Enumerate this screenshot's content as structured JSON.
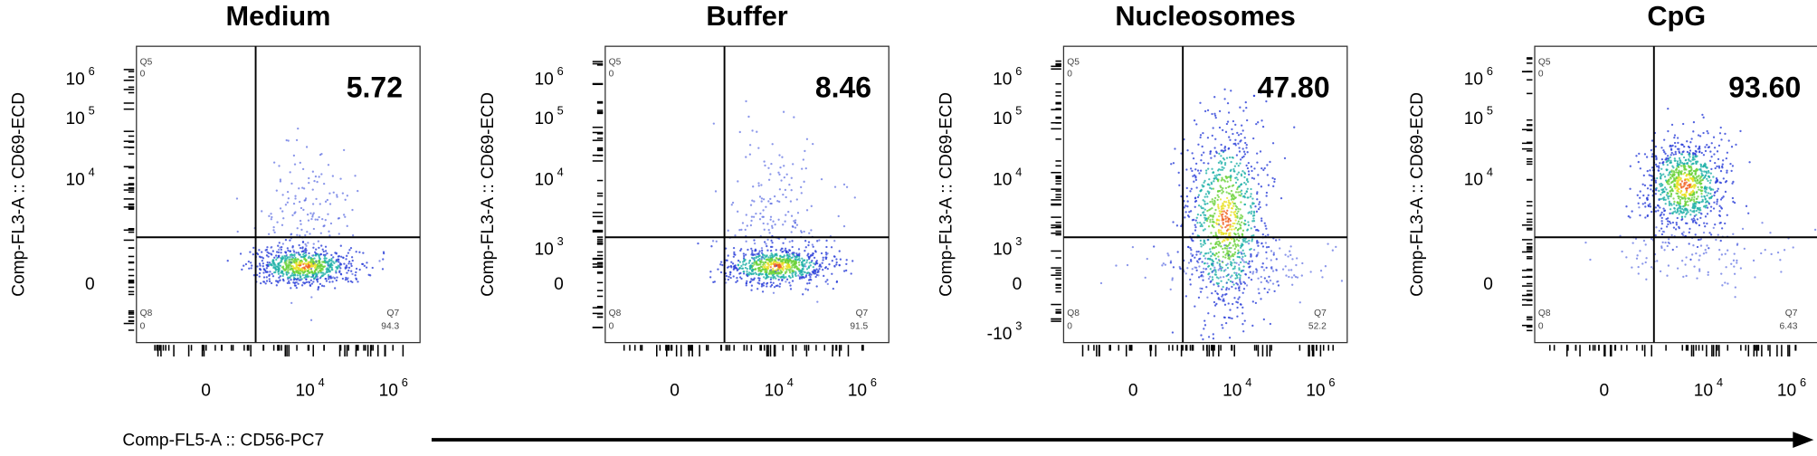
{
  "figure": {
    "x_label": "Comp-FL5-A :: CD56-PC7",
    "panels": [
      {
        "title": "Medium",
        "value": "5.72",
        "y_label": "Comp-FL3-A :: CD69-ECD",
        "q5": [
          "Q5",
          "0"
        ],
        "q8": [
          "Q8",
          "0"
        ],
        "q7": [
          "Q7",
          "94.3"
        ],
        "yticks": [
          {
            "base": "10",
            "exp": "6"
          },
          {
            "base": "10",
            "exp": "5"
          },
          {
            "base": "10",
            "exp": "4"
          },
          {
            "base": "0"
          }
        ],
        "xticks": [
          {
            "base": "0"
          },
          {
            "base": "10",
            "exp": "4"
          },
          {
            "base": "10",
            "exp": "6"
          }
        ]
      },
      {
        "title": "Buffer",
        "value": "8.46",
        "y_label": "Comp-FL3-A :: CD69-ECD",
        "q5": [
          "Q5",
          "0"
        ],
        "q8": [
          "Q8",
          "0"
        ],
        "q7": [
          "Q7",
          "91.5"
        ],
        "yticks": [
          {
            "base": "10",
            "exp": "6"
          },
          {
            "base": "10",
            "exp": "5"
          },
          {
            "base": "10",
            "exp": "4"
          },
          {
            "base": "10",
            "exp": "3"
          },
          {
            "base": "0"
          }
        ],
        "xticks": [
          {
            "base": "0"
          },
          {
            "base": "10",
            "exp": "4"
          },
          {
            "base": "10",
            "exp": "6"
          }
        ]
      },
      {
        "title": "Nucleosomes",
        "value": "47.80",
        "y_label": "Comp-FL3-A :: CD69-ECD",
        "q5": [
          "Q5",
          "0"
        ],
        "q8": [
          "Q8",
          "0"
        ],
        "q7": [
          "Q7",
          "52.2"
        ],
        "yticks": [
          {
            "base": "10",
            "exp": "6"
          },
          {
            "base": "10",
            "exp": "5"
          },
          {
            "base": "10",
            "exp": "4"
          },
          {
            "base": "10",
            "exp": "3"
          },
          {
            "base": "0"
          },
          {
            "base": "-10",
            "exp": "3"
          }
        ],
        "xticks": [
          {
            "base": "0"
          },
          {
            "base": "10",
            "exp": "4"
          },
          {
            "base": "10",
            "exp": "6"
          }
        ]
      },
      {
        "title": "CpG",
        "value": "93.60",
        "y_label": "Comp-FL3-A :: CD69-ECD",
        "q5": [
          "Q5",
          "0"
        ],
        "q8": [
          "Q8",
          "0"
        ],
        "q7": [
          "Q7",
          "6.43"
        ],
        "yticks": [
          {
            "base": "10",
            "exp": "6"
          },
          {
            "base": "10",
            "exp": "5"
          },
          {
            "base": "10",
            "exp": "4"
          },
          {
            "base": "0"
          }
        ],
        "xticks": [
          {
            "base": "0"
          },
          {
            "base": "10",
            "exp": "4"
          },
          {
            "base": "10",
            "exp": "6"
          }
        ]
      }
    ]
  }
}
